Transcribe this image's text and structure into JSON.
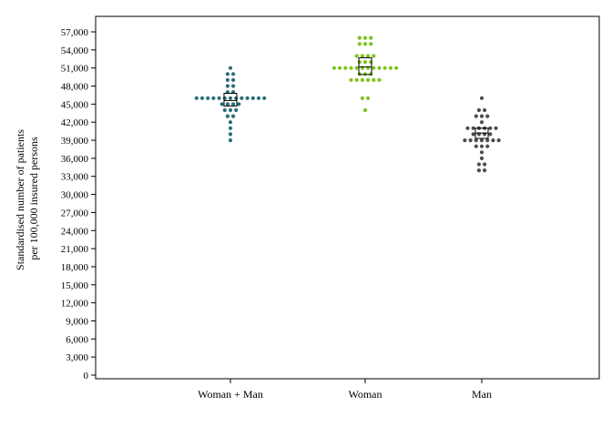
{
  "chart_data": {
    "type": "scatter",
    "subtype": "dot-strip with mean and confidence box",
    "xlabel": "",
    "ylabel_lines": [
      "Standardised number of patients",
      "per 100,000 insured persons"
    ],
    "ylim": [
      0,
      57000
    ],
    "yticks": [
      0,
      3000,
      6000,
      9000,
      12000,
      15000,
      18000,
      21000,
      24000,
      27000,
      30000,
      33000,
      36000,
      39000,
      42000,
      45000,
      48000,
      51000,
      54000,
      57000
    ],
    "ytick_labels": [
      "0",
      "3,000",
      "6,000",
      "9,000",
      "12,000",
      "15,000",
      "18,000",
      "21,000",
      "24,000",
      "27,000",
      "30,000",
      "33,000",
      "36,000",
      "39,000",
      "42,000",
      "45,000",
      "48,000",
      "51,000",
      "54,000",
      "57,000"
    ],
    "categories": [
      "Woman + Man",
      "Woman",
      "Man"
    ],
    "grid": false,
    "series": [
      {
        "category": "Woman + Man",
        "color": "#2a6f78",
        "mean": 45600,
        "box": [
          44700,
          46800
        ],
        "values": [
          51000,
          50000,
          50000,
          49000,
          49000,
          48000,
          48000,
          47000,
          47000,
          46000,
          46000,
          46000,
          46000,
          46000,
          46000,
          46000,
          46000,
          46000,
          46000,
          46000,
          46000,
          46000,
          45000,
          45000,
          45000,
          45000,
          44000,
          44000,
          44000,
          43000,
          43000,
          42000,
          41000,
          40000,
          39000
        ]
      },
      {
        "category": "Woman",
        "color": "#7fc31c",
        "mean": 51200,
        "box": [
          49900,
          52700
        ],
        "values": [
          56000,
          56000,
          56000,
          55000,
          55000,
          55000,
          53000,
          53000,
          53000,
          53000,
          52000,
          52000,
          52000,
          51000,
          51000,
          51000,
          51000,
          51000,
          51000,
          51000,
          51000,
          51000,
          51000,
          51000,
          51000,
          50000,
          50000,
          50000,
          49000,
          49000,
          49000,
          49000,
          49000,
          49000,
          46000,
          46000,
          44000
        ]
      },
      {
        "category": "Man",
        "color": "#4d4d4d",
        "mean": 40200,
        "box": [
          39300,
          41000
        ],
        "values": [
          46000,
          44000,
          44000,
          43000,
          43000,
          43000,
          42000,
          41000,
          41000,
          41000,
          41000,
          41000,
          41000,
          40000,
          40000,
          40000,
          40000,
          39000,
          39000,
          39000,
          39000,
          39000,
          39000,
          39000,
          38000,
          38000,
          38000,
          37000,
          36000,
          35000,
          35000,
          34000,
          34000
        ]
      }
    ]
  }
}
